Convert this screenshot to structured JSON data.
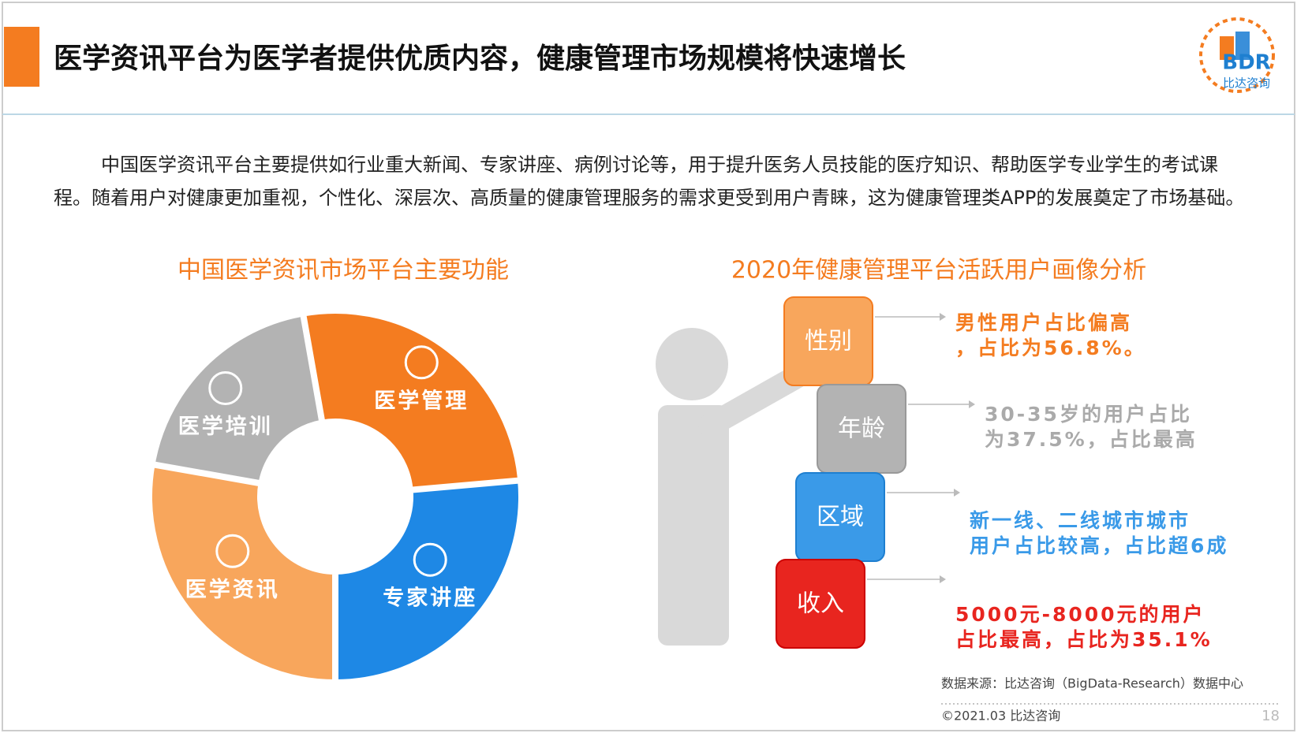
{
  "header": {
    "title": "医学资讯平台为医学者提供优质内容，健康管理市场规模将快速增长",
    "logo": "BDR",
    "logo_sub": "比达咨询"
  },
  "intro": "中国医学资讯平台主要提供如行业重大新闻、专家讲座、病例讨论等，用于提升医务人员技能的医疗知识、帮助医学专业学生的考试课程。随着用户对健康更加重视，个性化、深层次、高质量的健康管理服务的需求更受到用户青睐，这为健康管理类APP的发展奠定了市场基础。",
  "left": {
    "title": "中国医学资讯市场平台主要功能",
    "segments": [
      "医学培训",
      "医学管理",
      "专家讲座",
      "医学资讯"
    ]
  },
  "right": {
    "title": "2020年健康管理平台活跃用户画像分析",
    "items": [
      {
        "label": "性别",
        "lines": [
          "男性用户占比偏高",
          "，占比为56.8%。"
        ]
      },
      {
        "label": "年龄",
        "lines": [
          "30-35岁的用户占比",
          "为37.5%，占比最高"
        ]
      },
      {
        "label": "区域",
        "lines": [
          "新一线、二线城市城市",
          "用户占比较高，占比超6成"
        ]
      },
      {
        "label": "收入",
        "lines": [
          "5000元-8000元的用户",
          "占比最高，占比为35.1%"
        ]
      }
    ]
  },
  "footer": {
    "source": "数据来源：比达咨询（BigData-Research）数据中心",
    "copyright": "©2021.03 比达咨询",
    "page": "18"
  }
}
